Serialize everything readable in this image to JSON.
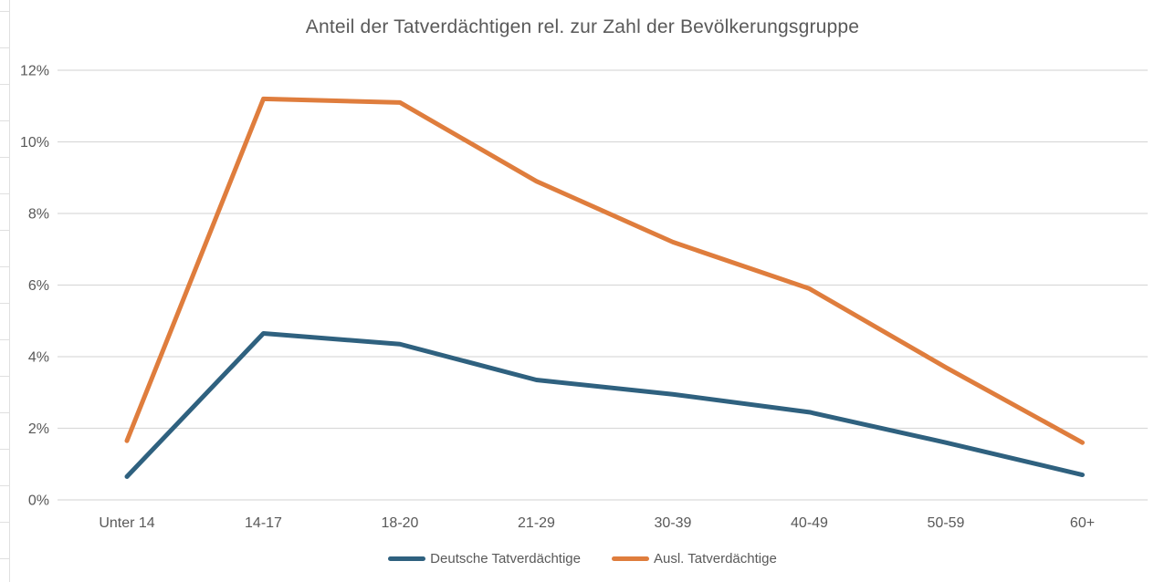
{
  "title": "Anteil der Tatverdächtigen rel. zur Zahl der Bevölkerungsgruppe",
  "colors": {
    "series_deutsche": "#2F617F",
    "series_ausl": "#DF7D3D",
    "gridline": "#D9D9D9",
    "axis_text": "#595959",
    "sheet_edge": "#E0E0E0"
  },
  "chart_data": {
    "type": "line",
    "title": "Anteil der Tatverdächtigen rel. zur Zahl der Bevölkerungsgruppe",
    "categories": [
      "Unter 14",
      "14-17",
      "18-20",
      "21-29",
      "30-39",
      "40-49",
      "50-59",
      "60+"
    ],
    "series": [
      {
        "name": "Deutsche Tatverdächtige",
        "color": "#2F617F",
        "values": [
          0.65,
          4.65,
          4.35,
          3.35,
          2.95,
          2.45,
          1.6,
          0.7
        ]
      },
      {
        "name": "Ausl. Tatverdächtige",
        "color": "#DF7D3D",
        "values": [
          1.65,
          11.2,
          11.1,
          8.9,
          7.2,
          5.9,
          3.7,
          1.6
        ]
      }
    ],
    "xlabel": "",
    "ylabel": "",
    "y_axis": {
      "min": 0,
      "max": 12,
      "step": 2,
      "unit": "%",
      "tick_labels": [
        "0%",
        "2%",
        "4%",
        "6%",
        "8%",
        "10%",
        "12%"
      ]
    },
    "grid": true,
    "legend_position": "bottom"
  },
  "legend": {
    "items": [
      {
        "label": "Deutsche Tatverdächtige"
      },
      {
        "label": "Ausl. Tatverdächtige"
      }
    ]
  }
}
